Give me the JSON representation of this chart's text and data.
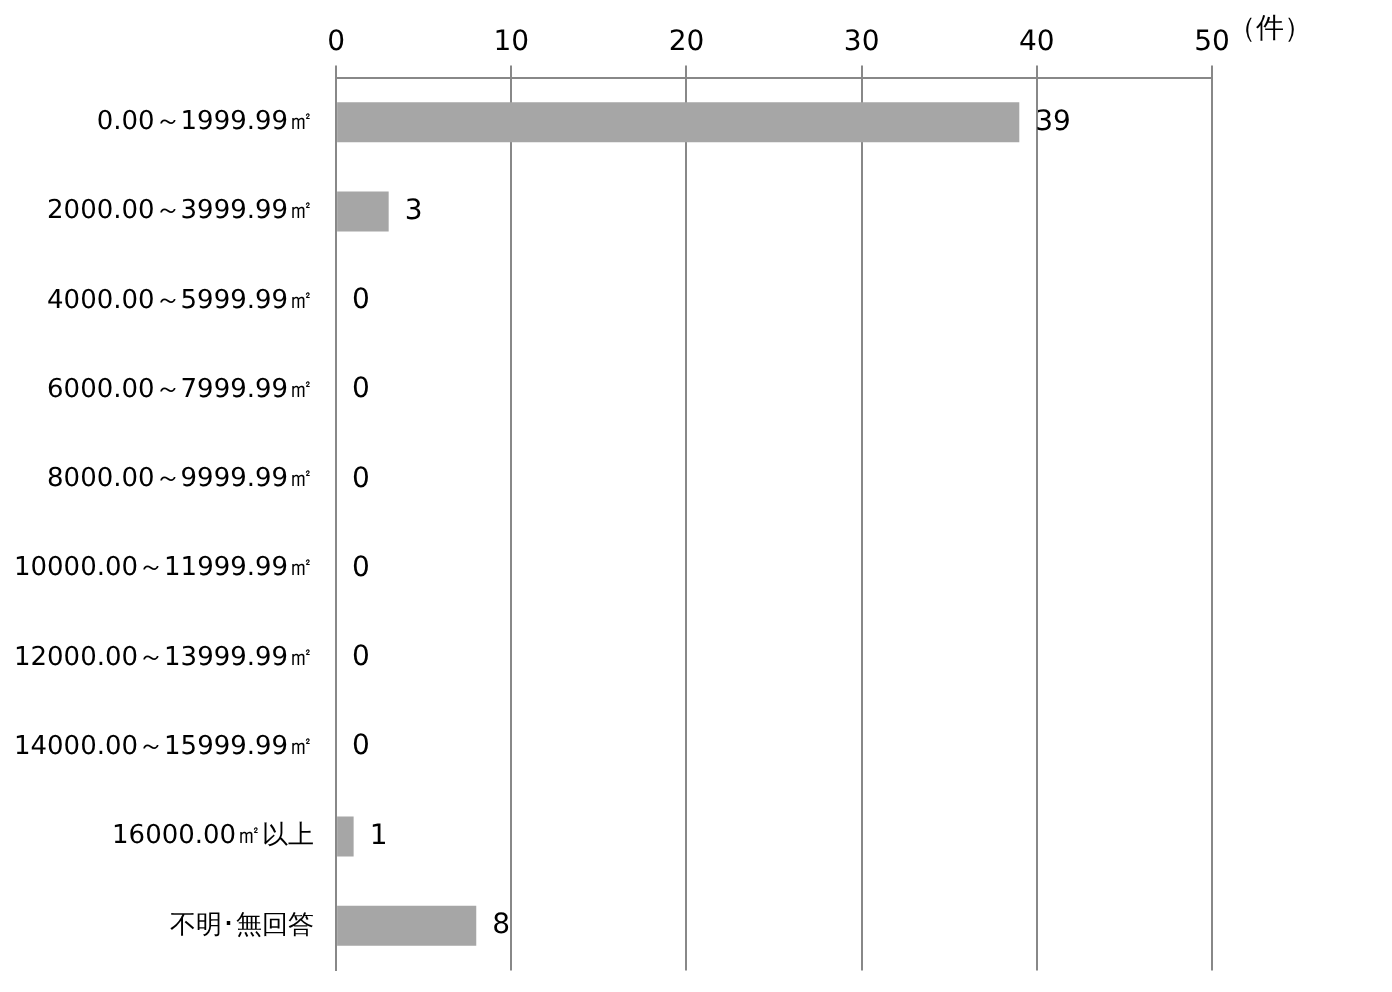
{
  "chart_data": {
    "type": "bar",
    "orientation": "horizontal",
    "xlabel": "（件）",
    "categories": [
      "0.00～1999.99㎡",
      "2000.00～3999.99㎡",
      "4000.00～5999.99㎡",
      "6000.00～7999.99㎡",
      "8000.00～9999.99㎡",
      "10000.00～11999.99㎡",
      "12000.00～13999.99㎡",
      "14000.00～15999.99㎡",
      "16000.00㎡以上",
      "不明･無回答"
    ],
    "values": [
      39,
      3,
      0,
      0,
      0,
      0,
      0,
      0,
      1,
      8
    ],
    "color": "#a6a6a6",
    "xlim": [
      0,
      50
    ],
    "xticks": [
      0,
      10,
      20,
      30,
      40,
      50
    ],
    "grid": "x",
    "data_labels": true,
    "legend": false
  }
}
